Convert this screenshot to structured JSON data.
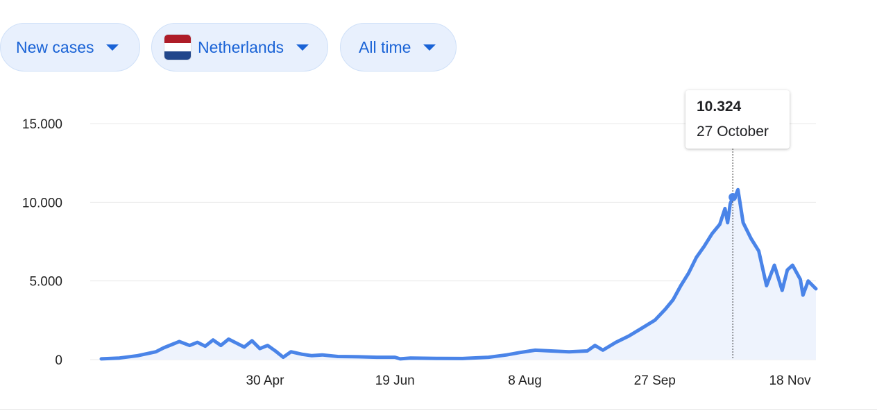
{
  "filters": {
    "metric": {
      "label": "New cases"
    },
    "region": {
      "label": "Netherlands",
      "flag_colors": [
        "#ae1c28",
        "#ffffff",
        "#21468b"
      ]
    },
    "range": {
      "label": "All time"
    }
  },
  "tooltip": {
    "value": "10.324",
    "date": "27 October"
  },
  "colors": {
    "line": "#4a84e8",
    "fill": "#eef3fd",
    "grid": "#e8e8e8",
    "accent": "#1a63d6"
  },
  "chart_data": {
    "type": "area",
    "title": "",
    "xlabel": "",
    "ylabel": "",
    "grid": true,
    "ylim": [
      0,
      15000
    ],
    "xlim": [
      "2020-02-27",
      "2020-11-28"
    ],
    "y_ticks": [
      0,
      5000,
      10000,
      15000
    ],
    "y_tick_labels": [
      "0",
      "5.000",
      "10.000",
      "15.000"
    ],
    "x_ticks": [
      "2020-04-30",
      "2020-06-19",
      "2020-08-08",
      "2020-09-27",
      "2020-11-18"
    ],
    "x_tick_labels": [
      "30 Apr",
      "19 Jun",
      "8 Aug",
      "27 Sep",
      "18 Nov"
    ],
    "highlight": {
      "date": "2020-10-27",
      "value": 10324
    },
    "series": [
      {
        "points": [
          [
            "2020-02-27",
            50
          ],
          [
            "2020-03-05",
            100
          ],
          [
            "2020-03-12",
            250
          ],
          [
            "2020-03-19",
            500
          ],
          [
            "2020-03-22",
            750
          ],
          [
            "2020-03-25",
            950
          ],
          [
            "2020-03-28",
            1150
          ],
          [
            "2020-04-01",
            900
          ],
          [
            "2020-04-04",
            1100
          ],
          [
            "2020-04-07",
            850
          ],
          [
            "2020-04-10",
            1250
          ],
          [
            "2020-04-13",
            900
          ],
          [
            "2020-04-16",
            1300
          ],
          [
            "2020-04-19",
            1050
          ],
          [
            "2020-04-22",
            800
          ],
          [
            "2020-04-25",
            1200
          ],
          [
            "2020-04-28",
            700
          ],
          [
            "2020-05-01",
            900
          ],
          [
            "2020-05-04",
            550
          ],
          [
            "2020-05-07",
            150
          ],
          [
            "2020-05-10",
            500
          ],
          [
            "2020-05-14",
            350
          ],
          [
            "2020-05-18",
            250
          ],
          [
            "2020-05-22",
            300
          ],
          [
            "2020-05-28",
            200
          ],
          [
            "2020-06-05",
            180
          ],
          [
            "2020-06-12",
            150
          ],
          [
            "2020-06-19",
            150
          ],
          [
            "2020-06-21",
            50
          ],
          [
            "2020-06-25",
            100
          ],
          [
            "2020-07-05",
            80
          ],
          [
            "2020-07-15",
            70
          ],
          [
            "2020-07-25",
            150
          ],
          [
            "2020-08-01",
            300
          ],
          [
            "2020-08-06",
            450
          ],
          [
            "2020-08-12",
            600
          ],
          [
            "2020-08-18",
            550
          ],
          [
            "2020-08-25",
            500
          ],
          [
            "2020-09-01",
            550
          ],
          [
            "2020-09-04",
            900
          ],
          [
            "2020-09-07",
            600
          ],
          [
            "2020-09-12",
            1100
          ],
          [
            "2020-09-17",
            1500
          ],
          [
            "2020-09-22",
            2000
          ],
          [
            "2020-09-27",
            2500
          ],
          [
            "2020-10-01",
            3200
          ],
          [
            "2020-10-04",
            3800
          ],
          [
            "2020-10-07",
            4700
          ],
          [
            "2020-10-10",
            5500
          ],
          [
            "2020-10-13",
            6500
          ],
          [
            "2020-10-16",
            7200
          ],
          [
            "2020-10-19",
            8000
          ],
          [
            "2020-10-22",
            8600
          ],
          [
            "2020-10-24",
            9600
          ],
          [
            "2020-10-25",
            8700
          ],
          [
            "2020-10-26",
            9900
          ],
          [
            "2020-10-27",
            10324
          ],
          [
            "2020-10-28",
            10400
          ],
          [
            "2020-10-29",
            10800
          ],
          [
            "2020-10-31",
            8700
          ],
          [
            "2020-11-03",
            7700
          ],
          [
            "2020-11-06",
            6900
          ],
          [
            "2020-11-09",
            4700
          ],
          [
            "2020-11-12",
            6000
          ],
          [
            "2020-11-15",
            4400
          ],
          [
            "2020-11-17",
            5700
          ],
          [
            "2020-11-19",
            6000
          ],
          [
            "2020-11-22",
            5100
          ],
          [
            "2020-11-23",
            4100
          ],
          [
            "2020-11-25",
            5000
          ],
          [
            "2020-11-28",
            4500
          ]
        ]
      }
    ]
  }
}
